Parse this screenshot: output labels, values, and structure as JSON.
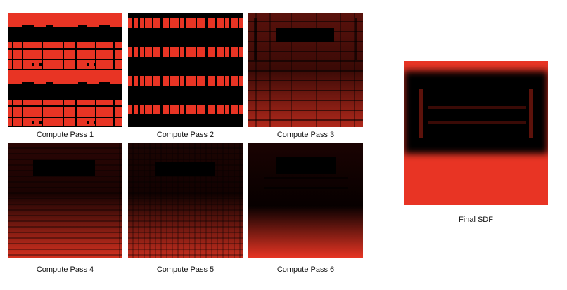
{
  "colors": {
    "accent": "#e83424",
    "dark": "#000000"
  },
  "passes": [
    {
      "label": "Compute Pass 1"
    },
    {
      "label": "Compute Pass 2"
    },
    {
      "label": "Compute Pass 3"
    },
    {
      "label": "Compute Pass 4"
    },
    {
      "label": "Compute Pass 5"
    },
    {
      "label": "Compute Pass 6"
    }
  ],
  "final": {
    "label": "Final SDF"
  }
}
